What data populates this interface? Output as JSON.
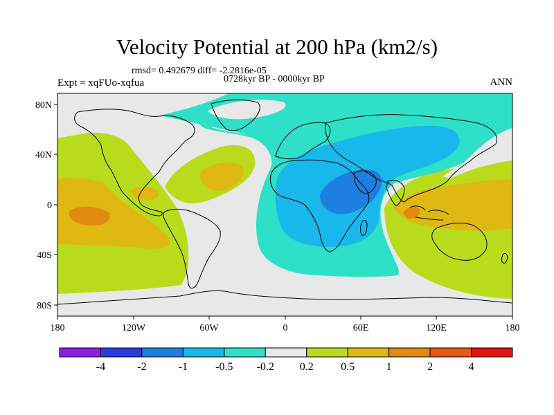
{
  "figure": {
    "title": "Velocity Potential at 200 hPa (km2/s)",
    "stats": "rmsd= 0.492679 diff= -2.2816e-05",
    "period": "0728kyr BP - 0000kyr BP",
    "expt": "Expt = xqFUo-xqfua",
    "season": "ANN"
  },
  "axes": {
    "lat_labels": [
      "80N",
      "40N",
      "0",
      "40S",
      "80S"
    ],
    "lon_labels": [
      "180",
      "120W",
      "60W",
      "0",
      "60E",
      "120E",
      "180"
    ]
  },
  "colorbar": {
    "labels": [
      "-4",
      "-2",
      "-1",
      "-0.5",
      "-0.2",
      "0.2",
      "0.5",
      "1",
      "2",
      "4"
    ],
    "colors": [
      "#8b1fe6",
      "#2b3be0",
      "#1e7fe0",
      "#18b8ea",
      "#2ee0c8",
      "#e8e8e8",
      "#b8dc1c",
      "#e0b812",
      "#e08a10",
      "#e85818",
      "#e01414"
    ]
  },
  "legend_colors": {
    "land_outline": "#000000",
    "near_zero": "#e8e8e8",
    "positive_light": "#b8dc1c",
    "positive_mid": "#e0b812",
    "positive_high": "#e08a10",
    "negative_light": "#2ee0c8",
    "negative_mid": "#18b8ea",
    "negative_high": "#1e7fe0"
  }
}
